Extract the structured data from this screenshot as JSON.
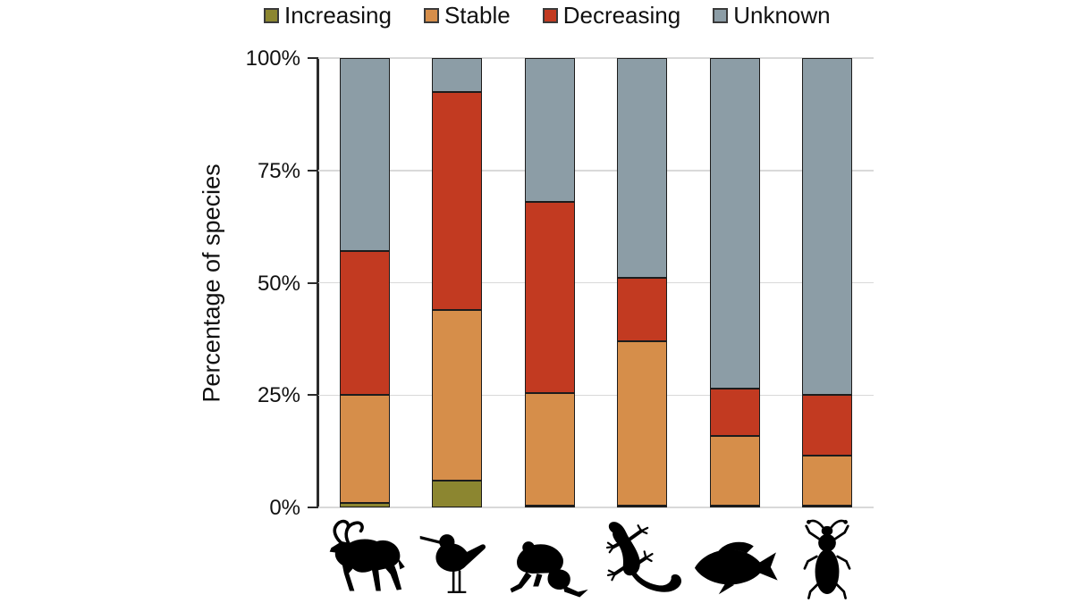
{
  "chart_data": {
    "type": "bar",
    "stacked": true,
    "orientation": "vertical",
    "title": "",
    "xlabel": "",
    "ylabel": "Percentage of species",
    "ylim": [
      0,
      100
    ],
    "yticks": [
      0,
      25,
      50,
      75,
      100
    ],
    "ytick_labels": [
      "0%",
      "25%",
      "50%",
      "75%",
      "100%"
    ],
    "grid": true,
    "legend_position": "top",
    "categories": [
      "mammal",
      "bird",
      "amphibian",
      "reptile",
      "fish",
      "insect"
    ],
    "category_icons": [
      "kudu-antelope-icon",
      "sandpiper-bird-icon",
      "frog-icon",
      "gecko-lizard-icon",
      "fish-icon",
      "beetle-icon"
    ],
    "series": [
      {
        "name": "Increasing",
        "color": "#8C8630",
        "values": [
          1.0,
          6.0,
          0.5,
          0.5,
          0.5,
          0.5
        ]
      },
      {
        "name": "Stable",
        "color": "#D68E4A",
        "values": [
          24.0,
          38.0,
          25.0,
          36.5,
          15.5,
          11.0
        ]
      },
      {
        "name": "Decreasing",
        "color": "#C23A21",
        "values": [
          32.0,
          48.5,
          42.5,
          14.0,
          10.5,
          13.5
        ]
      },
      {
        "name": "Unknown",
        "color": "#8C9DA6",
        "values": [
          43.0,
          7.5,
          32.0,
          49.0,
          73.5,
          75.0
        ]
      }
    ],
    "colors": {
      "gridline": "#d9d9d9",
      "axis": "#2b2b2b",
      "bar_border": "#1c1c1c",
      "text": "#111111"
    }
  }
}
